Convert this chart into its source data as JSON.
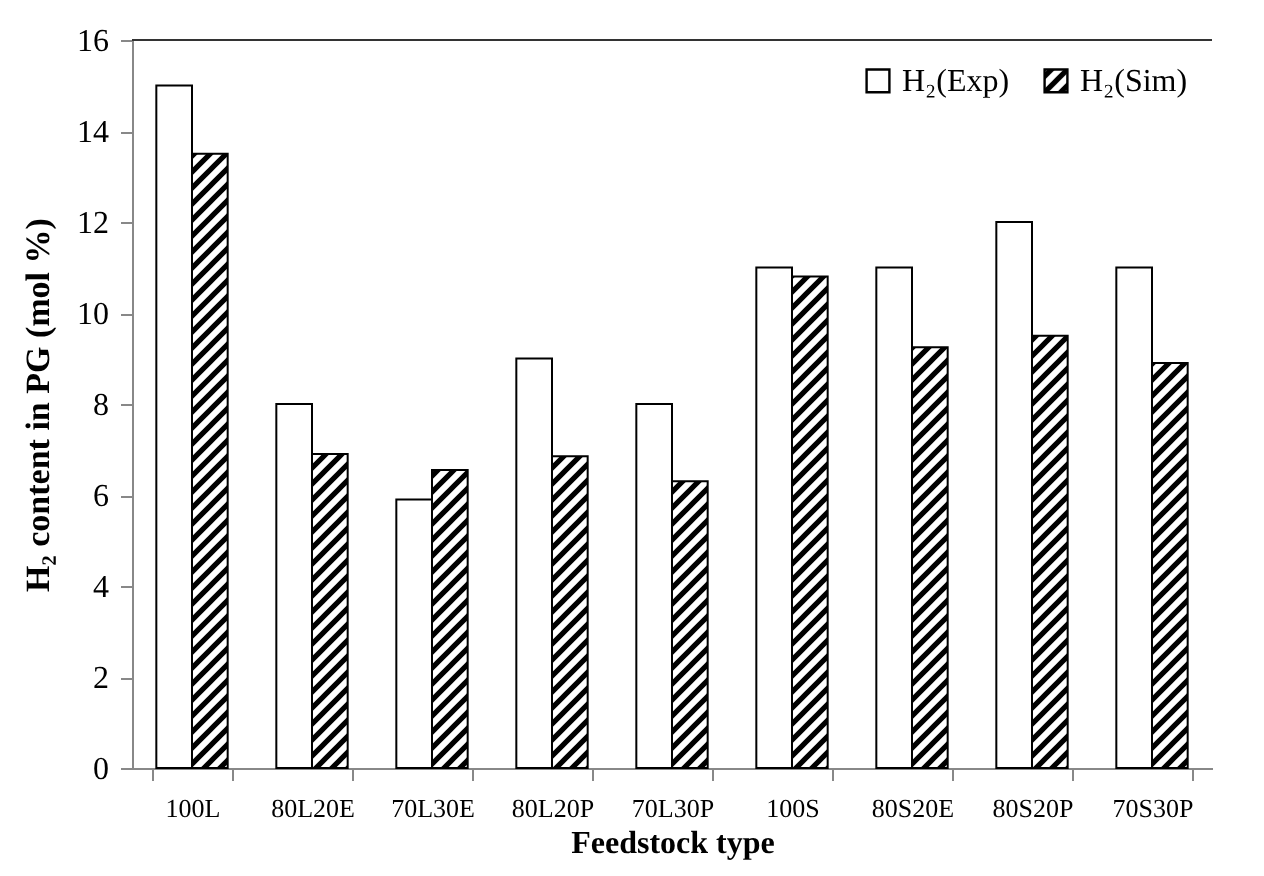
{
  "chart_data": {
    "type": "bar",
    "xlabel": "Feedstock type",
    "ylabel": "H₂ content in PG (mol %)",
    "categories": [
      "100L",
      "80L20E",
      "70L30E",
      "80L20P",
      "70L30P",
      "100S",
      "80S20E",
      "80S20P",
      "70S30P"
    ],
    "series": [
      {
        "name": "H₂(Exp)",
        "color": "#ffffff",
        "values": [
          15,
          8,
          5.9,
          9,
          8,
          11,
          11,
          12,
          11
        ]
      },
      {
        "name": "H₂(Sim)",
        "color": "#000000",
        "values": [
          13.5,
          6.9,
          6.55,
          6.85,
          6.3,
          10.8,
          9.25,
          9.5,
          8.9
        ]
      }
    ],
    "ylim": [
      0,
      16
    ],
    "yticks": [
      0,
      2,
      4,
      6,
      8,
      10,
      12,
      14,
      16
    ],
    "grid": false,
    "legend": "top right"
  }
}
